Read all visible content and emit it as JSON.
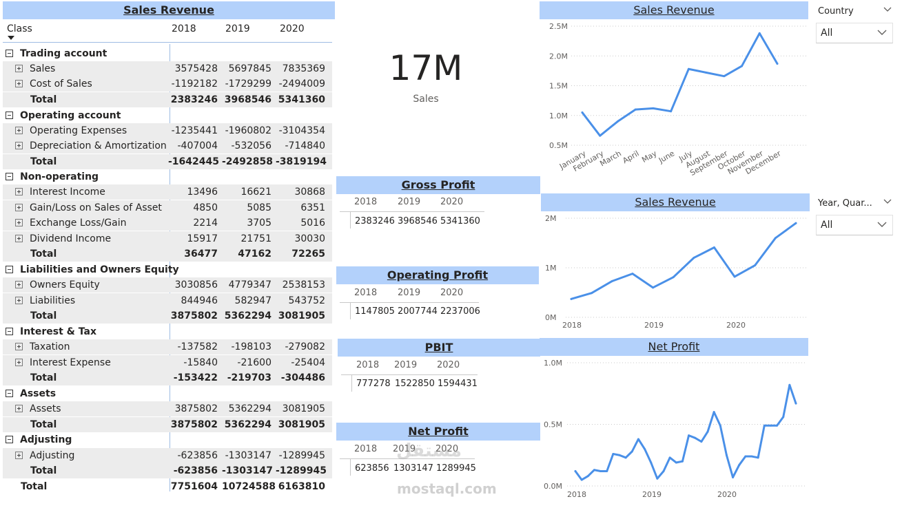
{
  "matrix": {
    "title": "Sales Revenue",
    "col_class": "Class",
    "years": [
      "2018",
      "2019",
      "2020"
    ],
    "rows": [
      {
        "type": "group",
        "label": "Trading account",
        "vals": [
          "",
          "",
          ""
        ]
      },
      {
        "type": "item",
        "label": "Sales",
        "vals": [
          "3575428",
          "5697845",
          "7835369"
        ]
      },
      {
        "type": "item",
        "label": "Cost of Sales",
        "vals": [
          "-1192182",
          "-1729299",
          "-2494009"
        ]
      },
      {
        "type": "total",
        "label": "Total",
        "vals": [
          "2383246",
          "3968546",
          "5341360"
        ]
      },
      {
        "type": "group",
        "label": "Operating account",
        "vals": [
          "",
          "",
          ""
        ]
      },
      {
        "type": "item",
        "label": "Operating Expenses",
        "vals": [
          "-1235441",
          "-1960802",
          "-3104354"
        ]
      },
      {
        "type": "item",
        "label": "Depreciation & Amortization",
        "vals": [
          "-407004",
          "-532056",
          "-714840"
        ]
      },
      {
        "type": "total",
        "label": "Total",
        "vals": [
          "-1642445",
          "-2492858",
          "-3819194"
        ]
      },
      {
        "type": "group",
        "label": "Non-operating",
        "vals": [
          "",
          "",
          ""
        ]
      },
      {
        "type": "item",
        "label": "Interest Income",
        "vals": [
          "13496",
          "16621",
          "30868"
        ]
      },
      {
        "type": "item",
        "label": "Gain/Loss on Sales of Asset",
        "vals": [
          "4850",
          "5085",
          "6351"
        ]
      },
      {
        "type": "item",
        "label": "Exchange Loss/Gain",
        "vals": [
          "2214",
          "3705",
          "5016"
        ]
      },
      {
        "type": "item",
        "label": "Dividend Income",
        "vals": [
          "15917",
          "21751",
          "30030"
        ]
      },
      {
        "type": "total",
        "label": "Total",
        "vals": [
          "36477",
          "47162",
          "72265"
        ]
      },
      {
        "type": "group",
        "label": "Liabilities and Owners Equity",
        "vals": [
          "",
          "",
          ""
        ]
      },
      {
        "type": "item",
        "label": "Owners Equity",
        "vals": [
          "3030856",
          "4779347",
          "2538153"
        ]
      },
      {
        "type": "item",
        "label": "Liabilities",
        "vals": [
          "844946",
          "582947",
          "543752"
        ]
      },
      {
        "type": "total",
        "label": "Total",
        "vals": [
          "3875802",
          "5362294",
          "3081905"
        ]
      },
      {
        "type": "group",
        "label": "Interest & Tax",
        "vals": [
          "",
          "",
          ""
        ]
      },
      {
        "type": "item",
        "label": "Taxation",
        "vals": [
          "-137582",
          "-198103",
          "-279082"
        ]
      },
      {
        "type": "item",
        "label": "Interest Expense",
        "vals": [
          "-15840",
          "-21600",
          "-25404"
        ]
      },
      {
        "type": "total",
        "label": "Total",
        "vals": [
          "-153422",
          "-219703",
          "-304486"
        ]
      },
      {
        "type": "group",
        "label": "Assets",
        "vals": [
          "",
          "",
          ""
        ]
      },
      {
        "type": "item",
        "label": "Assets",
        "vals": [
          "3875802",
          "5362294",
          "3081905"
        ]
      },
      {
        "type": "total",
        "label": "Total",
        "vals": [
          "3875802",
          "5362294",
          "3081905"
        ]
      },
      {
        "type": "group",
        "label": "Adjusting",
        "vals": [
          "",
          "",
          ""
        ]
      },
      {
        "type": "item",
        "label": "Adjusting",
        "vals": [
          "-623856",
          "-1303147",
          "-1289945"
        ]
      },
      {
        "type": "total",
        "label": "Total",
        "vals": [
          "-623856",
          "-1303147",
          "-1289945"
        ]
      },
      {
        "type": "grand",
        "label": "Total",
        "vals": [
          "7751604",
          "10724588",
          "6163810"
        ]
      }
    ]
  },
  "kpi": {
    "value": "17M",
    "label": "Sales"
  },
  "gross_profit": {
    "title": "Gross Profit",
    "years": [
      "2018",
      "2019",
      "2020"
    ],
    "values": [
      "2383246",
      "3968546",
      "5341360"
    ]
  },
  "operating_profit": {
    "title": "Operating Profit",
    "years": [
      "2018",
      "2019",
      "2020"
    ],
    "values": [
      "1147805",
      "2007744",
      "2237006"
    ]
  },
  "pbit": {
    "title": "PBIT",
    "years": [
      "2018",
      "2019",
      "2020"
    ],
    "values": [
      "777278",
      "1522850",
      "1594431"
    ]
  },
  "net_profit_table": {
    "title": "Net Profit",
    "years": [
      "2018",
      "2019",
      "2020"
    ],
    "values": [
      "623856",
      "1303147",
      "1289945"
    ]
  },
  "slicers": {
    "country": {
      "title": "Country",
      "value": "All"
    },
    "year_quarter": {
      "title": "Year, Quar...",
      "value": "All"
    }
  },
  "watermark": {
    "arabic": "مستقل",
    "latin": "mostaql.com"
  },
  "colors": {
    "header_bg": "#b3d1fb",
    "line": "#4a90e8"
  },
  "icons": {
    "expand": "plus-box-icon",
    "collapse": "minus-box-icon",
    "sort": "sort-down-icon",
    "dropdown": "chevron-down-icon",
    "slicer_menu": "chevron-down-icon"
  },
  "chart_data": [
    {
      "type": "line",
      "title": "Sales Revenue",
      "categories": [
        "January",
        "February",
        "March",
        "April",
        "May",
        "June",
        "July",
        "August",
        "September",
        "October",
        "November",
        "December"
      ],
      "values": [
        1.05,
        0.66,
        0.9,
        1.1,
        1.12,
        1.07,
        1.78,
        1.72,
        1.66,
        1.83,
        2.38,
        1.87
      ],
      "yunit": "M",
      "yticks": [
        "0.5M",
        "1.0M",
        "1.5M",
        "2.0M",
        "2.5M"
      ],
      "ylim": [
        0.5,
        2.5
      ]
    },
    {
      "type": "line",
      "title": "Sales Revenue",
      "x_ticks": [
        "2018",
        "2019",
        "2020"
      ],
      "values": [
        0.37,
        0.49,
        0.73,
        0.88,
        0.6,
        0.81,
        1.2,
        1.41,
        0.82,
        1.05,
        1.6,
        1.9
      ],
      "yticks": [
        "0M",
        "1M",
        "2M"
      ],
      "ylim": [
        0,
        2
      ]
    },
    {
      "type": "line",
      "title": "Net Profit",
      "x_ticks": [
        "2018",
        "2019",
        "2020"
      ],
      "values": [
        0.12,
        0.05,
        0.08,
        0.13,
        0.12,
        0.12,
        0.26,
        0.25,
        0.23,
        0.28,
        0.38,
        0.3,
        0.19,
        0.06,
        0.12,
        0.23,
        0.19,
        0.2,
        0.41,
        0.39,
        0.36,
        0.44,
        0.6,
        0.49,
        0.25,
        0.07,
        0.17,
        0.24,
        0.24,
        0.23,
        0.49,
        0.49,
        0.49,
        0.56,
        0.82,
        0.67
      ],
      "yticks": [
        "0.0M",
        "0.5M",
        "1.0M"
      ],
      "ylim": [
        0,
        1
      ]
    }
  ]
}
